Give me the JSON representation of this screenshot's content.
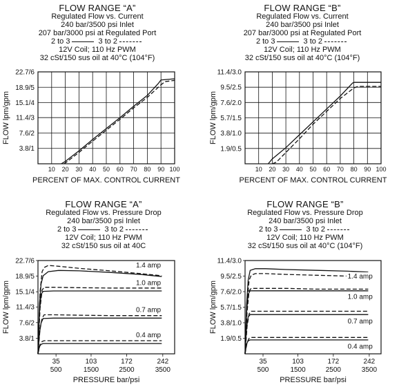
{
  "headers": [
    {
      "title": "FLOW RANGE “A”",
      "lines": [
        "Regulated Flow vs. Current",
        "240 bar/3500 psi Inlet",
        "207 bar/3000 psi at Regulated Port"
      ],
      "legend": {
        "solid": "2 to 3",
        "dashed": "3 to 2"
      },
      "tail": [
        "12V Coil; 110 Hz PWM",
        "32 cSt/150 sus oil at 40°C (104°F)"
      ]
    },
    {
      "title": "FLOW RANGE “B”",
      "lines": [
        "Regulated Flow vs. Current",
        "240 bar/3500 psi Inlet",
        "207 bar/3000 psi at Regulated Port"
      ],
      "legend": {
        "solid": "2 to 3",
        "dashed": "3 to 2"
      },
      "tail": [
        "12V Coil; 110 Hz PWM",
        "32 cSt/150 sus oil at 40°C (104°F)"
      ]
    },
    {
      "title": "FLOW RANGE “A”",
      "lines": [
        "Regulated Flow vs. Pressure Drop",
        "240 bar/3500 psi Inlet"
      ],
      "legend": {
        "solid": "2 to 3",
        "dashed": "3 to 2"
      },
      "tail": [
        "12V Coil; 110 Hz PWM",
        "32 cSt/150 sus oil at 40C"
      ]
    },
    {
      "title": "FLOW RANGE “B”",
      "lines": [
        "Regulated Flow vs. Pressure Drop",
        "240 bar/3500 psi Inlet"
      ],
      "legend": {
        "solid": "2 to 3",
        "dashed": "3 to 2"
      },
      "tail": [
        "12V Coil; 110 Hz PWM",
        "32 cSt/150 sus oil at 40°C (104°F)"
      ]
    }
  ],
  "chart_data": [
    {
      "type": "line",
      "title": "FLOW RANGE “A”",
      "xlabel": "PERCENT OF MAX. CONTROL CURRENT",
      "ylabel": "FLOW lpm/gpm",
      "xlim": [
        0,
        100
      ],
      "ylim": [
        0,
        22.7
      ],
      "x_ticks": [
        "10",
        "20",
        "30",
        "40",
        "50",
        "60",
        "70",
        "80",
        "90",
        "100"
      ],
      "y_ticks": [
        {
          "v": 3.8,
          "label": "3.8/1"
        },
        {
          "v": 7.6,
          "label": "7.6/2"
        },
        {
          "v": 11.4,
          "label": "11.4/3"
        },
        {
          "v": 15.1,
          "label": "15.1/4"
        },
        {
          "v": 18.9,
          "label": "18.9/5"
        },
        {
          "v": 22.7,
          "label": "22.7/6"
        }
      ],
      "grid": true,
      "series": [
        {
          "name": "2 to 3",
          "style": "solid",
          "x": [
            17,
            20,
            30,
            40,
            50,
            60,
            70,
            80,
            88,
            90,
            100
          ],
          "y": [
            0,
            0.6,
            3.2,
            6.0,
            8.7,
            11.4,
            14.2,
            16.9,
            19.8,
            20.7,
            21.0
          ]
        },
        {
          "name": "3 to 2",
          "style": "dashed",
          "x": [
            19,
            20,
            30,
            40,
            50,
            60,
            70,
            80,
            90,
            93,
            100
          ],
          "y": [
            0,
            0.2,
            2.8,
            5.6,
            8.3,
            11.0,
            13.8,
            16.4,
            19.5,
            20.3,
            20.6
          ]
        }
      ]
    },
    {
      "type": "line",
      "title": "FLOW RANGE “B”",
      "xlabel": "PERCENT OF MAX. CONTROL CURRENT",
      "ylabel": "FLOW lpm/gpm",
      "xlim": [
        0,
        100
      ],
      "ylim": [
        0,
        11.4
      ],
      "x_ticks": [
        "10",
        "20",
        "30",
        "40",
        "50",
        "60",
        "70",
        "80",
        "90",
        "100"
      ],
      "y_ticks": [
        {
          "v": 1.9,
          "label": "1.9/0.5"
        },
        {
          "v": 3.8,
          "label": "3.8/1.0"
        },
        {
          "v": 5.7,
          "label": "5.7/1.5"
        },
        {
          "v": 7.6,
          "label": "7.6/2.0"
        },
        {
          "v": 9.5,
          "label": "9.5/2.5"
        },
        {
          "v": 11.4,
          "label": "11.4/3.0"
        }
      ],
      "grid": true,
      "series": [
        {
          "name": "2 to 3",
          "style": "solid",
          "x": [
            17,
            20,
            30,
            40,
            50,
            60,
            70,
            79,
            80,
            100
          ],
          "y": [
            0,
            0.6,
            2.0,
            3.6,
            5.2,
            6.8,
            8.4,
            10.0,
            10.1,
            10.1
          ]
        },
        {
          "name": "3 to 2",
          "style": "dashed",
          "x": [
            20,
            23,
            30,
            40,
            50,
            60,
            70,
            80,
            83,
            100
          ],
          "y": [
            0,
            0.2,
            1.4,
            3.1,
            4.9,
            6.5,
            8.1,
            9.4,
            9.6,
            9.6
          ]
        }
      ]
    },
    {
      "type": "line",
      "title": "FLOW RANGE “A”",
      "xlabel": "PRESSURE  bar/psi",
      "ylabel": "FLOW lpm/gpm",
      "xlim": [
        0,
        265
      ],
      "ylim": [
        0,
        22.7
      ],
      "x_ticks": [
        {
          "v": 35,
          "top": "35",
          "bottom": "500"
        },
        {
          "v": 103,
          "top": "103",
          "bottom": "1500"
        },
        {
          "v": 172,
          "top": "172",
          "bottom": "2500"
        },
        {
          "v": 242,
          "top": "242",
          "bottom": "3500"
        }
      ],
      "y_ticks": [
        {
          "v": 3.8,
          "label": "3.8/1"
        },
        {
          "v": 7.6,
          "label": "7.6/2"
        },
        {
          "v": 11.4,
          "label": "11.4/3"
        },
        {
          "v": 15.1,
          "label": "15.1/4"
        },
        {
          "v": 18.9,
          "label": "18.9/5"
        },
        {
          "v": 22.7,
          "label": "22.7/6"
        }
      ],
      "grid": false,
      "annotations": [
        {
          "text": "1.4 amp",
          "x": 190,
          "y": 21.2
        },
        {
          "text": "1.0 amp",
          "x": 190,
          "y": 16.9
        },
        {
          "text": "0.7 amp",
          "x": 190,
          "y": 10.3
        },
        {
          "text": "0.4 amp",
          "x": 190,
          "y": 4.2
        }
      ],
      "series": [
        {
          "name": "1.4 amp 2 to 3",
          "style": "solid",
          "x": [
            0,
            3,
            6,
            10,
            20,
            40,
            80,
            140,
            200,
            240
          ],
          "y": [
            0,
            12,
            17,
            19,
            20,
            20.3,
            20.2,
            19.8,
            19.3,
            18.8
          ]
        },
        {
          "name": "1.4 amp 3 to 2",
          "style": "dashed",
          "x": [
            0,
            4,
            8,
            12,
            20,
            40,
            80,
            140,
            200,
            240
          ],
          "y": [
            0,
            15,
            20,
            21,
            21.5,
            21.3,
            20.8,
            20.2,
            19.5,
            19.0
          ]
        },
        {
          "name": "1.0 amp 2 to 3",
          "style": "solid",
          "x": [
            0,
            3,
            6,
            10,
            30,
            80,
            140,
            200,
            240
          ],
          "y": [
            0,
            10,
            14.5,
            15.2,
            15.3,
            15.3,
            15.3,
            15.3,
            15.3
          ]
        },
        {
          "name": "1.0 amp 3 to 2",
          "style": "dashed",
          "x": [
            0,
            4,
            8,
            12,
            30,
            80,
            140,
            200,
            240
          ],
          "y": [
            0,
            11,
            15.5,
            16.2,
            16.2,
            16.1,
            16.0,
            16.0,
            16.0
          ]
        },
        {
          "name": "0.7 amp 2 to 3",
          "style": "solid",
          "x": [
            0,
            3,
            6,
            10,
            30,
            80,
            140,
            200,
            240
          ],
          "y": [
            0,
            5,
            7.5,
            8.6,
            8.7,
            8.7,
            8.7,
            8.7,
            8.7
          ]
        },
        {
          "name": "0.7 amp 3 to 2",
          "style": "dashed",
          "x": [
            0,
            4,
            8,
            12,
            30,
            80,
            140,
            200,
            240
          ],
          "y": [
            0,
            6,
            8.7,
            9.5,
            9.5,
            9.4,
            9.3,
            9.3,
            9.3
          ]
        },
        {
          "name": "0.4 amp 2 to 3",
          "style": "solid",
          "x": [
            0,
            3,
            6,
            10,
            30,
            80,
            140,
            200,
            240
          ],
          "y": [
            0,
            1.8,
            2.3,
            2.5,
            2.5,
            2.5,
            2.5,
            2.5,
            2.5
          ]
        },
        {
          "name": "0.4 amp 3 to 2",
          "style": "dashed",
          "x": [
            0,
            4,
            8,
            12,
            30,
            80,
            140,
            200,
            240
          ],
          "y": [
            0,
            2.2,
            3.0,
            3.2,
            3.2,
            3.2,
            3.2,
            3.2,
            3.2
          ]
        }
      ]
    },
    {
      "type": "line",
      "title": "FLOW RANGE “B”",
      "xlabel": "PRESSURE  bar/psi",
      "ylabel": "FLOW lpm/gpm",
      "xlim": [
        0,
        265
      ],
      "ylim": [
        0,
        11.4
      ],
      "x_ticks": [
        {
          "v": 35,
          "top": "35",
          "bottom": "500"
        },
        {
          "v": 103,
          "top": "103",
          "bottom": "1500"
        },
        {
          "v": 172,
          "top": "172",
          "bottom": "2500"
        },
        {
          "v": 242,
          "top": "242",
          "bottom": "3500"
        }
      ],
      "y_ticks": [
        {
          "v": 1.9,
          "label": "1.9/0.5"
        },
        {
          "v": 3.8,
          "label": "3.8/1.0"
        },
        {
          "v": 5.7,
          "label": "5.7/1.5"
        },
        {
          "v": 7.6,
          "label": "7.6/2.0"
        },
        {
          "v": 9.5,
          "label": "9.5/2.5"
        },
        {
          "v": 11.4,
          "label": "11.4/3.0"
        }
      ],
      "grid": false,
      "annotations": [
        {
          "text": "1.4 amp",
          "x": 200,
          "y": 9.3
        },
        {
          "text": "1.0 amp",
          "x": 200,
          "y": 6.8
        },
        {
          "text": "0.7 amp",
          "x": 200,
          "y": 3.8
        },
        {
          "text": "0.4 amp",
          "x": 200,
          "y": 0.7
        }
      ],
      "series": [
        {
          "name": "1.4 amp 2 to 3",
          "style": "solid",
          "x": [
            0,
            3,
            6,
            10,
            20,
            40,
            80,
            140,
            200,
            240
          ],
          "y": [
            0,
            6,
            9,
            10.2,
            10.4,
            10.4,
            10.3,
            10.2,
            10.1,
            10.0
          ]
        },
        {
          "name": "1.4 amp 3 to 2",
          "style": "dashed",
          "x": [
            0,
            4,
            8,
            12,
            20,
            40,
            80,
            140,
            200,
            240
          ],
          "y": [
            0,
            6.5,
            9,
            9.6,
            9.8,
            9.8,
            9.7,
            9.6,
            9.5,
            9.5
          ]
        },
        {
          "name": "1.0 amp 2 to 3",
          "style": "solid",
          "x": [
            0,
            3,
            6,
            10,
            30,
            80,
            140,
            200,
            240
          ],
          "y": [
            0,
            5,
            7.3,
            7.7,
            7.7,
            7.7,
            7.7,
            7.7,
            7.7
          ]
        },
        {
          "name": "1.0 amp 3 to 2",
          "style": "dashed",
          "x": [
            0,
            4,
            8,
            12,
            30,
            80,
            140,
            200,
            240
          ],
          "y": [
            0,
            5.2,
            7.7,
            8.0,
            8.0,
            8.0,
            7.9,
            7.9,
            7.9
          ]
        },
        {
          "name": "0.7 amp 2 to 3",
          "style": "solid",
          "x": [
            0,
            3,
            6,
            10,
            30,
            80,
            140,
            200,
            240
          ],
          "y": [
            0,
            3.2,
            4.5,
            4.8,
            4.8,
            4.8,
            4.8,
            4.8,
            4.8
          ]
        },
        {
          "name": "0.7 amp 3 to 2",
          "style": "dashed",
          "x": [
            0,
            4,
            8,
            12,
            30,
            80,
            140,
            200,
            240
          ],
          "y": [
            0,
            3.4,
            4.9,
            5.2,
            5.2,
            5.2,
            5.2,
            5.2,
            5.2
          ]
        },
        {
          "name": "0.4 amp 2 to 3",
          "style": "solid",
          "x": [
            0,
            3,
            6,
            10,
            30,
            80,
            140,
            200,
            240
          ],
          "y": [
            0,
            1.2,
            1.6,
            1.7,
            1.7,
            1.7,
            1.7,
            1.7,
            1.7
          ]
        },
        {
          "name": "0.4 amp 3 to 2",
          "style": "dashed",
          "x": [
            0,
            4,
            8,
            12,
            30,
            80,
            140,
            200,
            240
          ],
          "y": [
            0,
            1.4,
            1.9,
            2.0,
            2.0,
            2.0,
            2.0,
            2.0,
            2.0
          ]
        }
      ]
    }
  ]
}
